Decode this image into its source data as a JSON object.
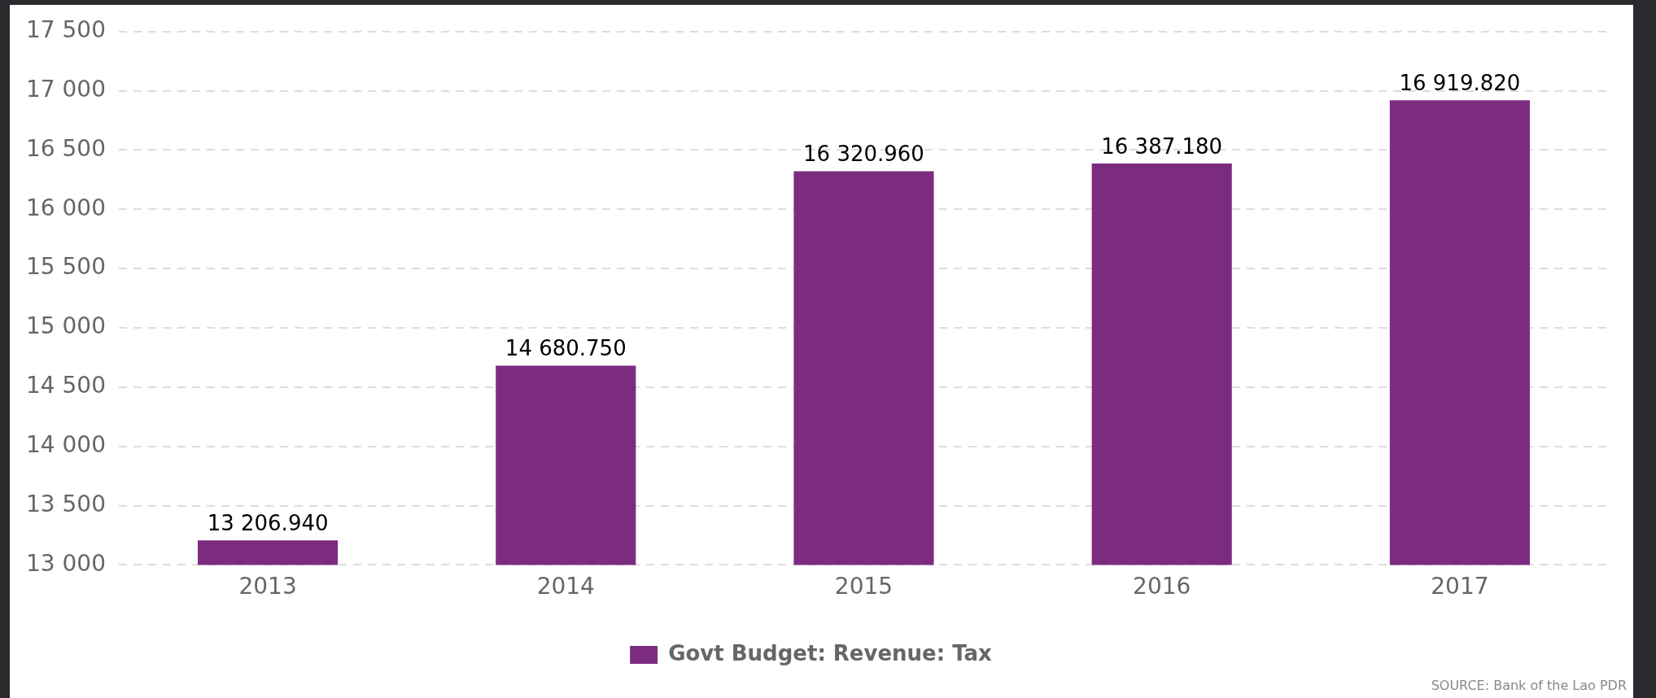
{
  "chart_data": {
    "type": "bar",
    "categories": [
      "2013",
      "2014",
      "2015",
      "2016",
      "2017"
    ],
    "series": [
      {
        "name": "Govt Budget: Revenue: Tax",
        "color": "#7b2c80",
        "values": [
          13206.94,
          14680.75,
          16320.96,
          16387.18,
          16919.82
        ],
        "value_labels": [
          "13 206.940",
          "14 680.750",
          "16 320.960",
          "16 387.180",
          "16 919.820"
        ]
      }
    ],
    "ylim": [
      13000,
      17500
    ],
    "yticks": [
      {
        "value": 13000,
        "label": "13 000"
      },
      {
        "value": 13500,
        "label": "13 500"
      },
      {
        "value": 14000,
        "label": "14 000"
      },
      {
        "value": 14500,
        "label": "14 500"
      },
      {
        "value": 15000,
        "label": "15 000"
      },
      {
        "value": 15500,
        "label": "15 500"
      },
      {
        "value": 16000,
        "label": "16 000"
      },
      {
        "value": 16500,
        "label": "16 500"
      },
      {
        "value": 17000,
        "label": "17 000"
      },
      {
        "value": 17500,
        "label": "17 500"
      }
    ],
    "grid": "y",
    "legend": "bottom",
    "annotations": [
      "SOURCE: Bank of the Lao PDR"
    ]
  }
}
